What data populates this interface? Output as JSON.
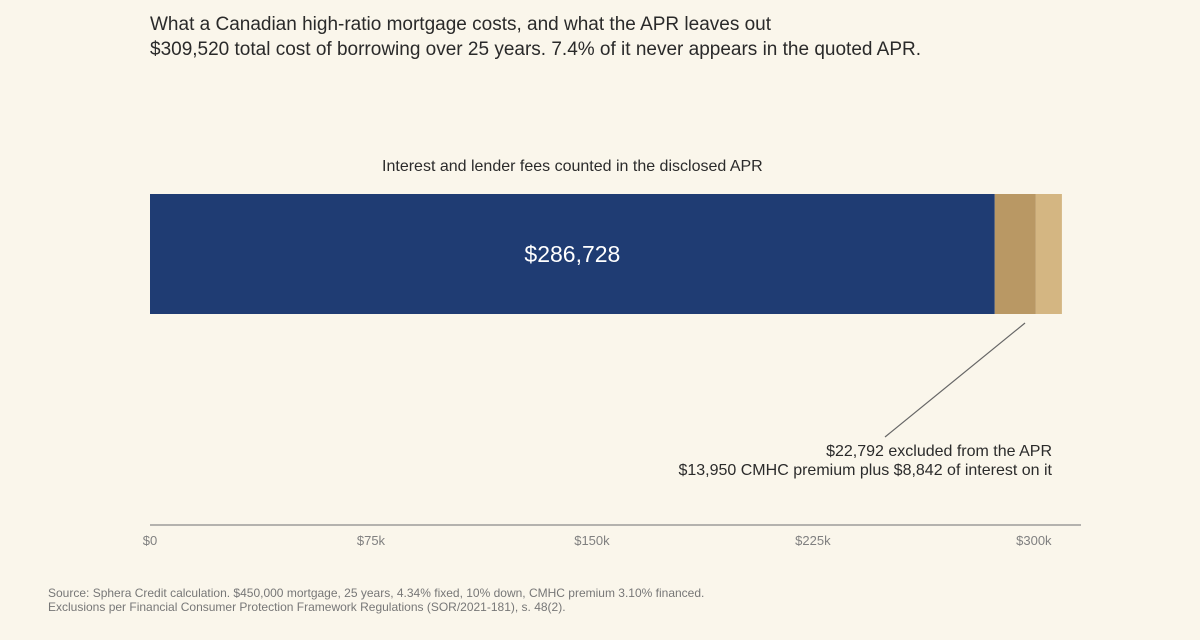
{
  "title_lines": [
    "What a Canadian high-ratio mortgage costs, and what the APR leaves out",
    "$309,520 total cost of borrowing over 25 years. 7.4% of it never appears in the quoted APR."
  ],
  "source_lines": [
    "Source: Sphera Credit calculation. $450,000 mortgage, 25 years, 4.34% fixed, 10% down, CMHC premium 3.10% financed.",
    "Exclusions per Financial Consumer Protection Framework Regulations (SOR/2021-181), s. 48(2)."
  ],
  "chart_data": {
    "type": "bar",
    "orientation": "horizontal",
    "stacked": true,
    "xlim": [
      0,
      316000
    ],
    "ticks": [
      {
        "value": 0,
        "label": "$0"
      },
      {
        "value": 75000,
        "label": "$75k"
      },
      {
        "value": 150000,
        "label": "$150k"
      },
      {
        "value": 225000,
        "label": "$225k"
      },
      {
        "value": 300000,
        "label": "$300k"
      }
    ],
    "grid": false,
    "segments": [
      {
        "value": 286728,
        "color": "#1f3c73",
        "label": "$286,728",
        "caption": "Interest and lender fees counted in the disclosed APR"
      },
      {
        "value": 13950,
        "color": "#b99864"
      },
      {
        "value": 8842,
        "color": "#d4b682"
      }
    ],
    "annotation": {
      "lines": [
        "$22,792 excluded from the APR",
        "$13,950 CMHC premium plus $8,842 of interest on it"
      ],
      "points_to_value": 297000
    }
  }
}
